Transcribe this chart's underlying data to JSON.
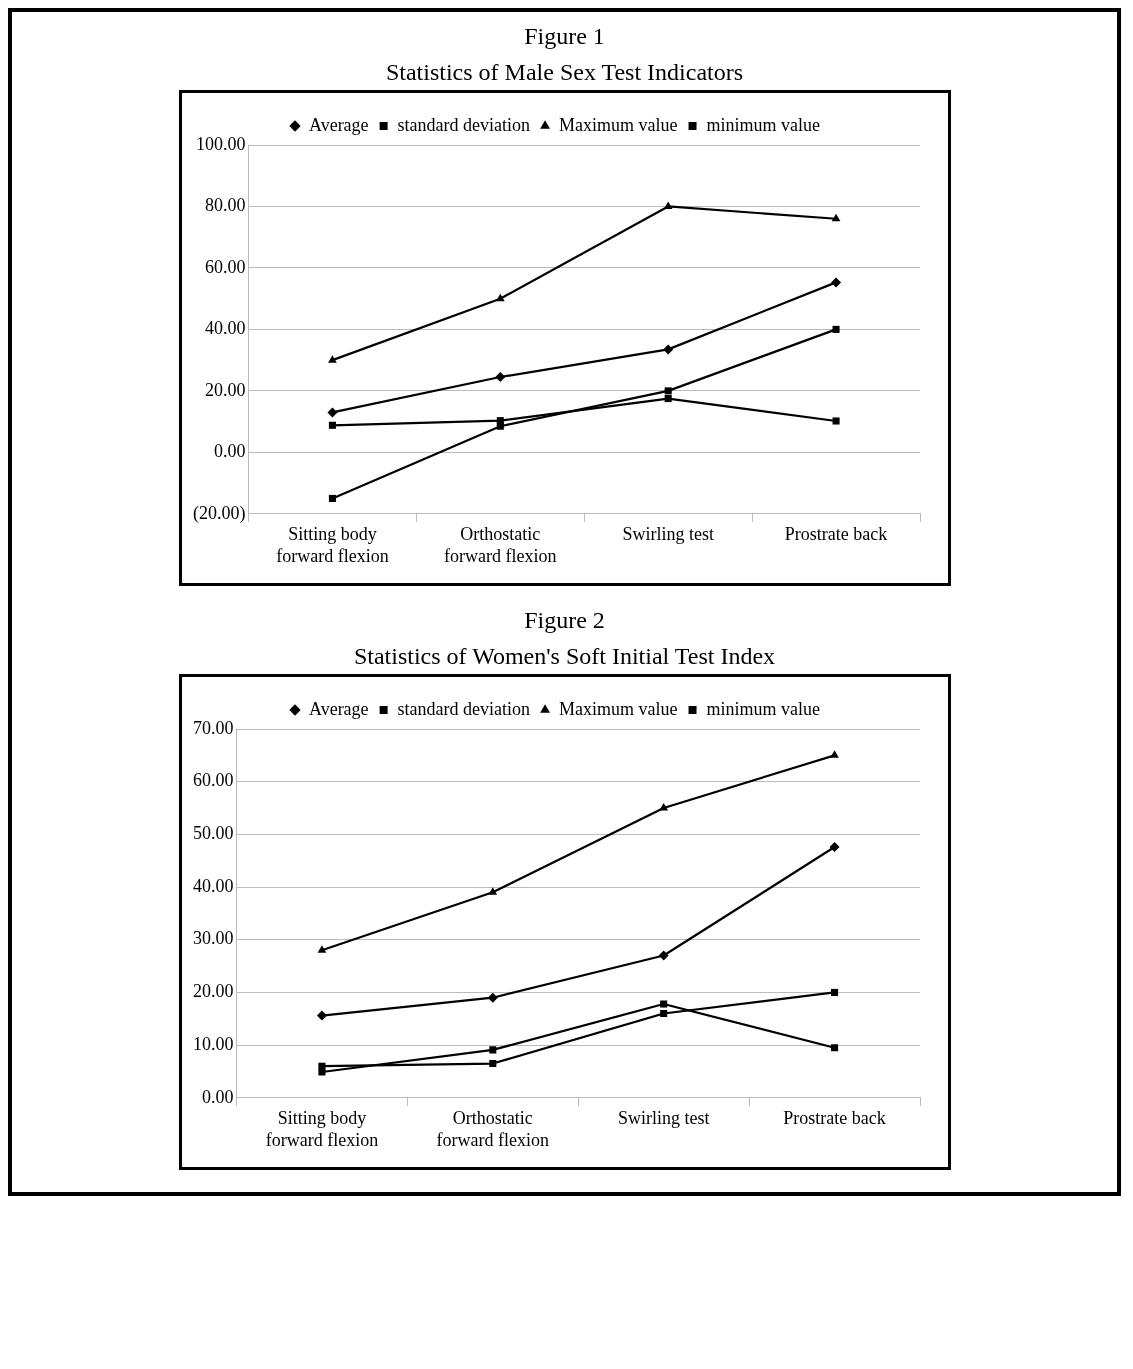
{
  "chart_data": [
    {
      "type": "line",
      "title": "Figure 1",
      "subtitle": "Statistics of Male Sex Test Indicators",
      "categories": [
        "Sitting body forward flexion",
        "Orthostatic forward flexion",
        "Swirling test",
        "Prostrate back"
      ],
      "series": [
        {
          "name": "Average",
          "color": "#000000",
          "marker": "diamond",
          "values": [
            13,
            24.5,
            33.5,
            55.3
          ]
        },
        {
          "name": "standard deviation",
          "color": "#000000",
          "marker": "square",
          "values": [
            8.8,
            10.3,
            17.5,
            10.2
          ]
        },
        {
          "name": "Maximum value",
          "color": "#000000",
          "marker": "triangle",
          "values": [
            30,
            50,
            80,
            76
          ]
        },
        {
          "name": "minimum value",
          "color": "#000000",
          "marker": "square",
          "values": [
            -15,
            8.5,
            20,
            40
          ]
        }
      ],
      "ylim": [
        -20,
        100
      ],
      "yticks": [
        {
          "value": -20,
          "label": "(20.00)"
        },
        {
          "value": 0,
          "label": "0.00"
        },
        {
          "value": 20,
          "label": "20.00"
        },
        {
          "value": 40,
          "label": "40.00"
        },
        {
          "value": 60,
          "label": "60.00"
        },
        {
          "value": 80,
          "label": "80.00"
        },
        {
          "value": 100,
          "label": "100.00"
        }
      ],
      "grid": "y",
      "legend": "top",
      "line_style": "solid"
    },
    {
      "type": "line",
      "title": "Figure 2",
      "subtitle": "Statistics of Women's Soft Initial Test Index",
      "categories": [
        "Sitting body forward flexion",
        "Orthostatic forward flexion",
        "Swirling test",
        "Prostrate back"
      ],
      "series": [
        {
          "name": "Average",
          "color": "#000000",
          "marker": "diamond",
          "values": [
            15.6,
            19,
            27,
            47.6
          ]
        },
        {
          "name": "standard deviation",
          "color": "#000000",
          "marker": "square",
          "values": [
            4.9,
            9.1,
            17.8,
            9.5
          ]
        },
        {
          "name": "Maximum value",
          "color": "#000000",
          "marker": "triangle",
          "values": [
            28,
            39,
            55,
            65
          ]
        },
        {
          "name": "minimum value",
          "color": "#000000",
          "marker": "square",
          "values": [
            6,
            6.5,
            16,
            20
          ]
        }
      ],
      "ylim": [
        0,
        70
      ],
      "yticks": [
        {
          "value": 0,
          "label": "0.00"
        },
        {
          "value": 10,
          "label": "10.00"
        },
        {
          "value": 20,
          "label": "20.00"
        },
        {
          "value": 30,
          "label": "30.00"
        },
        {
          "value": 40,
          "label": "40.00"
        },
        {
          "value": 50,
          "label": "50.00"
        },
        {
          "value": 60,
          "label": "60.00"
        },
        {
          "value": 70,
          "label": "70.00"
        }
      ],
      "grid": "y",
      "legend": "top",
      "line_style": "solid"
    }
  ]
}
